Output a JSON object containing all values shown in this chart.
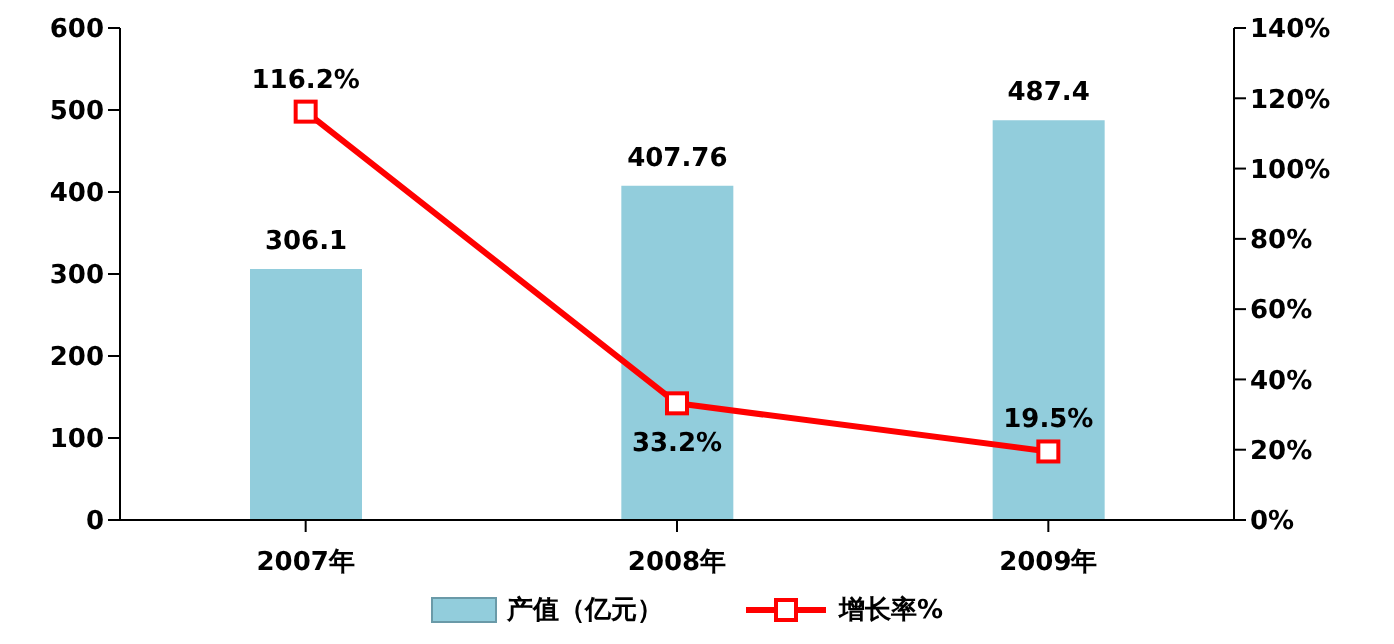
{
  "chart_data": {
    "type": "bar",
    "categories": [
      "2007年",
      "2008年",
      "2009年"
    ],
    "series": [
      {
        "name": "产值（亿元）",
        "color": "#92cddc",
        "values": [
          306.1,
          407.76,
          487.4
        ]
      },
      {
        "name": "增长率%",
        "type": "line",
        "axis": "y2",
        "color": "#ff0000",
        "values": [
          116.2,
          33.2,
          19.5
        ],
        "value_labels": [
          "116.2%",
          "33.2%",
          "19.5%"
        ]
      }
    ],
    "data_labels": true,
    "ylim": [
      0,
      600
    ],
    "yticks": [
      0,
      100,
      200,
      300,
      400,
      500,
      600
    ],
    "y2lim": [
      0,
      140
    ],
    "y2ticks": [
      {
        "value": 0,
        "label": "0%"
      },
      {
        "value": 20,
        "label": "20%"
      },
      {
        "value": 40,
        "label": "40%"
      },
      {
        "value": 60,
        "label": "60%"
      },
      {
        "value": 80,
        "label": "80%"
      },
      {
        "value": 100,
        "label": "100%"
      },
      {
        "value": 120,
        "label": "120%"
      },
      {
        "value": 140,
        "label": "140%"
      }
    ],
    "marker": "square",
    "line_style": "solid",
    "grid": false,
    "legend": "bottom"
  }
}
